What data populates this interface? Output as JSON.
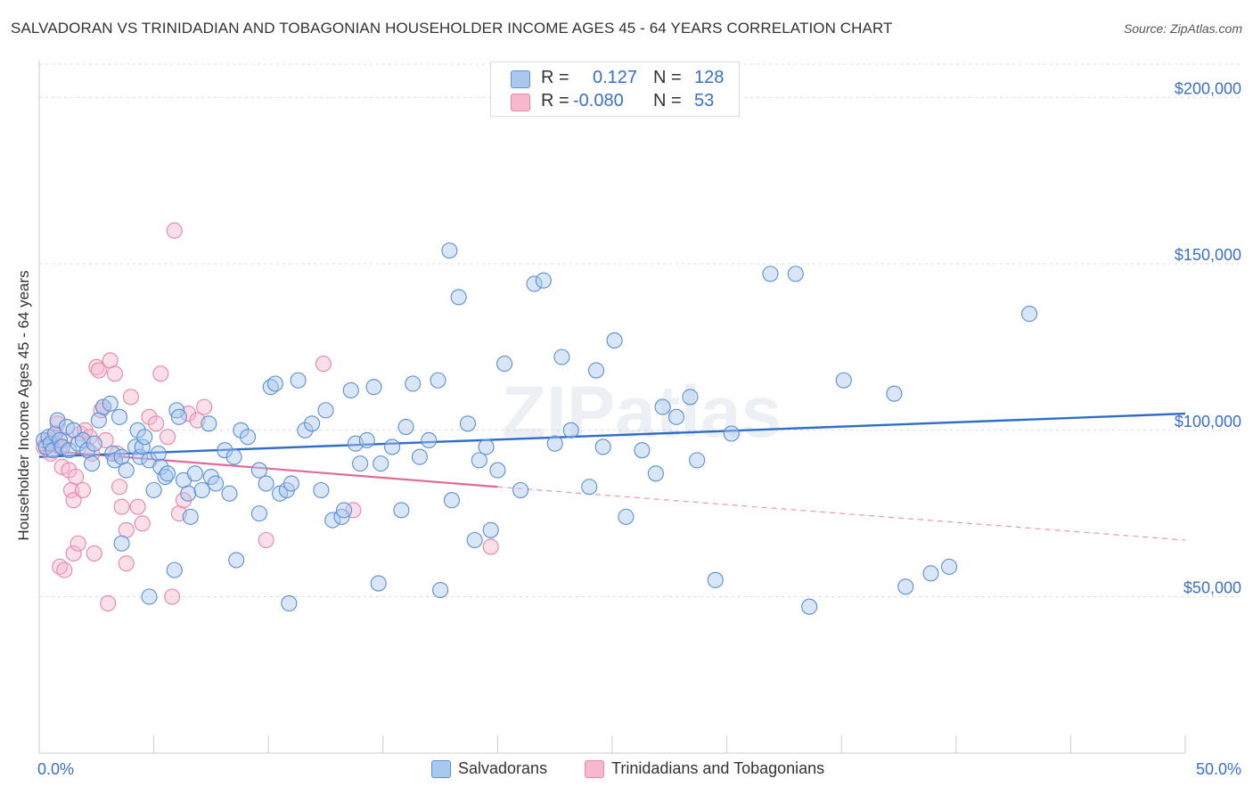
{
  "title": "SALVADORAN VS TRINIDADIAN AND TOBAGONIAN HOUSEHOLDER INCOME AGES 45 - 64 YEARS CORRELATION CHART",
  "source": "Source: ZipAtlas.com",
  "watermark": "ZIPatlas",
  "legend_top": {
    "rows": [
      {
        "r_label": "R =",
        "r_value": "0.127",
        "n_label": "N =",
        "n_value": "128",
        "color": "#a9c8ef"
      },
      {
        "r_label": "R =",
        "r_value": "-0.080",
        "n_label": "N =",
        "n_value": "53",
        "color": "#f7b8cd"
      }
    ]
  },
  "legend_bottom": [
    {
      "label": "Salvadorans",
      "color": "#a9c8ef"
    },
    {
      "label": "Trinidadians and Tobagonians",
      "color": "#f7b8cd"
    }
  ],
  "chart_data": {
    "type": "scatter",
    "ylabel": "Householder Income Ages 45 - 64 years",
    "xlabel": "",
    "x_tick_labels": {
      "left": "0.0%",
      "right": "50.0%"
    },
    "y_tick_labels": [
      "$50,000",
      "$100,000",
      "$150,000",
      "$200,000"
    ],
    "y_ticks": [
      50000,
      100000,
      150000,
      200000
    ],
    "xlim": [
      0,
      50
    ],
    "ylim": [
      3000,
      210000
    ],
    "grid": true,
    "colors": {
      "blue_fill": "#a9c8ef",
      "blue_stroke": "#5b8fd6",
      "blue_line": "#2f6ec8",
      "pink_fill": "#f7b8cd",
      "pink_stroke": "#e886a9",
      "pink_line": "#e0699a",
      "axis_text": "#3a70c6"
    },
    "series": [
      {
        "name": "Salvadorans",
        "trend": {
          "x0": 0,
          "y0": 92000,
          "x1": 50,
          "y1": 105000
        },
        "points": [
          [
            0.2,
            97000
          ],
          [
            0.3,
            95000
          ],
          [
            0.4,
            98000
          ],
          [
            0.5,
            96000
          ],
          [
            0.6,
            94000
          ],
          [
            0.7,
            99000
          ],
          [
            0.8,
            103000
          ],
          [
            0.9,
            97000
          ],
          [
            1.0,
            95000
          ],
          [
            1.2,
            101000
          ],
          [
            1.3,
            94000
          ],
          [
            1.5,
            100000
          ],
          [
            1.7,
            96000
          ],
          [
            1.9,
            97000
          ],
          [
            2.1,
            94000
          ],
          [
            2.3,
            90000
          ],
          [
            2.4,
            96000
          ],
          [
            2.6,
            103000
          ],
          [
            2.8,
            107000
          ],
          [
            3.1,
            108000
          ],
          [
            3.2,
            93000
          ],
          [
            3.3,
            91000
          ],
          [
            3.5,
            104000
          ],
          [
            3.6,
            92000
          ],
          [
            3.8,
            88000
          ],
          [
            4.2,
            95000
          ],
          [
            4.3,
            100000
          ],
          [
            4.4,
            92000
          ],
          [
            4.5,
            95000
          ],
          [
            4.6,
            98000
          ],
          [
            4.8,
            91000
          ],
          [
            5.0,
            82000
          ],
          [
            5.2,
            93000
          ],
          [
            5.3,
            89000
          ],
          [
            5.5,
            86000
          ],
          [
            5.6,
            87000
          ],
          [
            6.0,
            106000
          ],
          [
            6.1,
            104000
          ],
          [
            6.3,
            85000
          ],
          [
            6.5,
            81000
          ],
          [
            6.8,
            87000
          ],
          [
            7.1,
            82000
          ],
          [
            7.4,
            102000
          ],
          [
            7.5,
            86000
          ],
          [
            7.7,
            84000
          ],
          [
            8.1,
            94000
          ],
          [
            8.3,
            81000
          ],
          [
            8.5,
            92000
          ],
          [
            8.8,
            100000
          ],
          [
            9.1,
            98000
          ],
          [
            9.6,
            88000
          ],
          [
            9.9,
            84000
          ],
          [
            10.1,
            113000
          ],
          [
            10.3,
            114000
          ],
          [
            10.5,
            81000
          ],
          [
            10.8,
            82000
          ],
          [
            11.0,
            84000
          ],
          [
            11.3,
            115000
          ],
          [
            11.6,
            100000
          ],
          [
            11.9,
            102000
          ],
          [
            12.3,
            82000
          ],
          [
            12.5,
            106000
          ],
          [
            12.8,
            73000
          ],
          [
            13.2,
            74000
          ],
          [
            13.6,
            112000
          ],
          [
            13.8,
            96000
          ],
          [
            14.0,
            90000
          ],
          [
            14.3,
            97000
          ],
          [
            14.6,
            113000
          ],
          [
            14.9,
            90000
          ],
          [
            15.4,
            95000
          ],
          [
            15.8,
            76000
          ],
          [
            16.0,
            101000
          ],
          [
            16.3,
            114000
          ],
          [
            16.6,
            92000
          ],
          [
            17.0,
            97000
          ],
          [
            17.4,
            115000
          ],
          [
            17.9,
            154000
          ],
          [
            18.0,
            79000
          ],
          [
            18.3,
            140000
          ],
          [
            18.7,
            102000
          ],
          [
            19.0,
            67000
          ],
          [
            19.2,
            91000
          ],
          [
            19.5,
            95000
          ],
          [
            19.7,
            70000
          ],
          [
            20.0,
            88000
          ],
          [
            20.3,
            120000
          ],
          [
            21.0,
            82000
          ],
          [
            21.6,
            144000
          ],
          [
            22.0,
            145000
          ],
          [
            22.5,
            96000
          ],
          [
            22.8,
            122000
          ],
          [
            23.2,
            100000
          ],
          [
            24.0,
            83000
          ],
          [
            24.3,
            118000
          ],
          [
            24.6,
            95000
          ],
          [
            25.1,
            127000
          ],
          [
            25.6,
            74000
          ],
          [
            26.3,
            94000
          ],
          [
            26.9,
            87000
          ],
          [
            27.2,
            107000
          ],
          [
            27.8,
            104000
          ],
          [
            28.4,
            110000
          ],
          [
            28.7,
            91000
          ],
          [
            29.5,
            55000
          ],
          [
            30.2,
            99000
          ],
          [
            31.9,
            147000
          ],
          [
            33.0,
            147000
          ],
          [
            33.6,
            47000
          ],
          [
            35.1,
            115000
          ],
          [
            37.3,
            111000
          ],
          [
            37.8,
            53000
          ],
          [
            38.9,
            57000
          ],
          [
            39.7,
            59000
          ],
          [
            43.2,
            135000
          ],
          [
            17.5,
            52000
          ],
          [
            10.9,
            48000
          ],
          [
            8.6,
            61000
          ],
          [
            5.9,
            58000
          ],
          [
            4.8,
            50000
          ],
          [
            3.6,
            66000
          ],
          [
            14.8,
            54000
          ],
          [
            13.3,
            76000
          ],
          [
            9.6,
            75000
          ],
          [
            6.6,
            74000
          ]
        ]
      },
      {
        "name": "Trinidadians and Tobagonians",
        "trend": {
          "x0": 0,
          "y0": 94000,
          "x1": 20,
          "y1": 83000,
          "dash_x1": 50,
          "dash_y1": 67000
        },
        "points": [
          [
            0.2,
            95000
          ],
          [
            0.4,
            97000
          ],
          [
            0.5,
            93000
          ],
          [
            0.6,
            98000
          ],
          [
            0.7,
            96000
          ],
          [
            0.8,
            102000
          ],
          [
            0.9,
            95000
          ],
          [
            1.0,
            89000
          ],
          [
            1.1,
            97000
          ],
          [
            1.3,
            88000
          ],
          [
            1.4,
            82000
          ],
          [
            1.5,
            79000
          ],
          [
            1.6,
            86000
          ],
          [
            1.8,
            99000
          ],
          [
            1.9,
            82000
          ],
          [
            2.0,
            100000
          ],
          [
            2.2,
            98000
          ],
          [
            2.3,
            93000
          ],
          [
            2.5,
            119000
          ],
          [
            2.6,
            118000
          ],
          [
            2.7,
            106000
          ],
          [
            2.8,
            107000
          ],
          [
            2.9,
            97000
          ],
          [
            3.1,
            121000
          ],
          [
            3.3,
            117000
          ],
          [
            3.4,
            93000
          ],
          [
            3.5,
            83000
          ],
          [
            3.6,
            77000
          ],
          [
            3.8,
            70000
          ],
          [
            4.0,
            110000
          ],
          [
            4.3,
            77000
          ],
          [
            4.5,
            72000
          ],
          [
            4.8,
            104000
          ],
          [
            5.1,
            102000
          ],
          [
            5.3,
            117000
          ],
          [
            5.6,
            98000
          ],
          [
            5.9,
            160000
          ],
          [
            0.9,
            59000
          ],
          [
            1.1,
            58000
          ],
          [
            1.5,
            63000
          ],
          [
            1.7,
            66000
          ],
          [
            2.4,
            63000
          ],
          [
            3.0,
            48000
          ],
          [
            3.8,
            60000
          ],
          [
            5.8,
            50000
          ],
          [
            6.1,
            75000
          ],
          [
            6.3,
            79000
          ],
          [
            6.5,
            105000
          ],
          [
            6.9,
            103000
          ],
          [
            7.2,
            107000
          ],
          [
            9.9,
            67000
          ],
          [
            12.4,
            120000
          ],
          [
            13.7,
            76000
          ],
          [
            19.7,
            65000
          ]
        ]
      }
    ]
  }
}
